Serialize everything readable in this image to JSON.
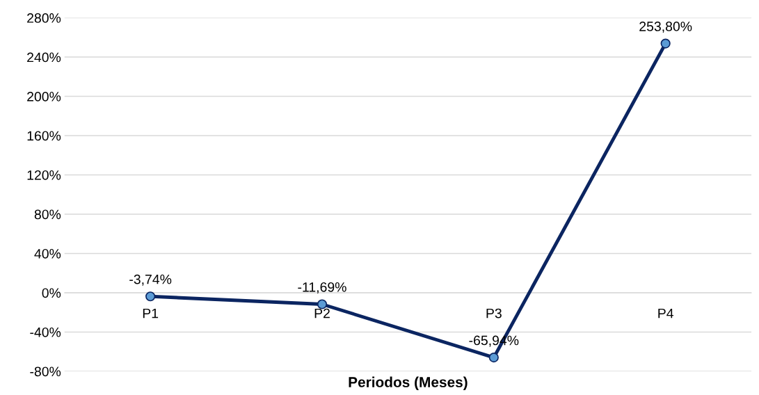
{
  "chart_data": {
    "type": "line",
    "xlabel": "Periodos (Meses)",
    "categories": [
      "P1",
      "P2",
      "P3",
      "P4"
    ],
    "series": [
      {
        "color": "#0b2561",
        "values": [
          -3.74,
          -11.69,
          -65.94,
          253.8
        ],
        "value_labels": [
          "-3,74%",
          "-11,69%",
          "-65,94%",
          "253,80%"
        ]
      }
    ],
    "ylim": [
      -80,
      280
    ],
    "yticks": [
      {
        "value": -80,
        "label": "-80%"
      },
      {
        "value": -40,
        "label": "-40%"
      },
      {
        "value": 0,
        "label": "0%"
      },
      {
        "value": 40,
        "label": "40%"
      },
      {
        "value": 80,
        "label": "80%"
      },
      {
        "value": 120,
        "label": "120%"
      },
      {
        "value": 160,
        "label": "160%"
      },
      {
        "value": 200,
        "label": "200%"
      },
      {
        "value": 240,
        "label": "240%"
      },
      {
        "value": 280,
        "label": "280%"
      }
    ],
    "grid": "y",
    "marker": "circle",
    "line_style": "solid"
  }
}
